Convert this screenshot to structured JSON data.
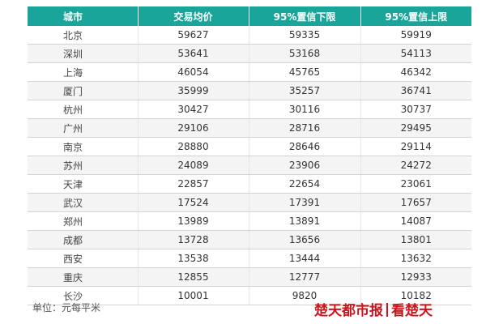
{
  "table": {
    "headers": [
      "城市",
      "交易均价",
      "95%置信下限",
      "95%置信上限"
    ],
    "rows": [
      [
        "北京",
        "59627",
        "59335",
        "59919"
      ],
      [
        "深圳",
        "53641",
        "53168",
        "54113"
      ],
      [
        "上海",
        "46054",
        "45765",
        "46342"
      ],
      [
        "厦门",
        "35999",
        "35257",
        "36741"
      ],
      [
        "杭州",
        "30427",
        "30116",
        "30737"
      ],
      [
        "广州",
        "29106",
        "28716",
        "29495"
      ],
      [
        "南京",
        "28880",
        "28646",
        "29114"
      ],
      [
        "苏州",
        "24089",
        "23906",
        "24272"
      ],
      [
        "天津",
        "22857",
        "22654",
        "23061"
      ],
      [
        "武汉",
        "17524",
        "17391",
        "17657"
      ],
      [
        "郑州",
        "13989",
        "13891",
        "14087"
      ],
      [
        "成都",
        "13728",
        "13656",
        "13801"
      ],
      [
        "西安",
        "13538",
        "13444",
        "13632"
      ],
      [
        "重庆",
        "12855",
        "12777",
        "12933"
      ],
      [
        "长沙",
        "10001",
        "9820",
        "10182"
      ]
    ]
  },
  "footer": {
    "unit": "单位：元每平米",
    "brand_left": "楚天都市报",
    "brand_right": "看楚天",
    "brand_color": "#c8161d"
  },
  "theme": {
    "header_bg": "#1aa59a"
  }
}
